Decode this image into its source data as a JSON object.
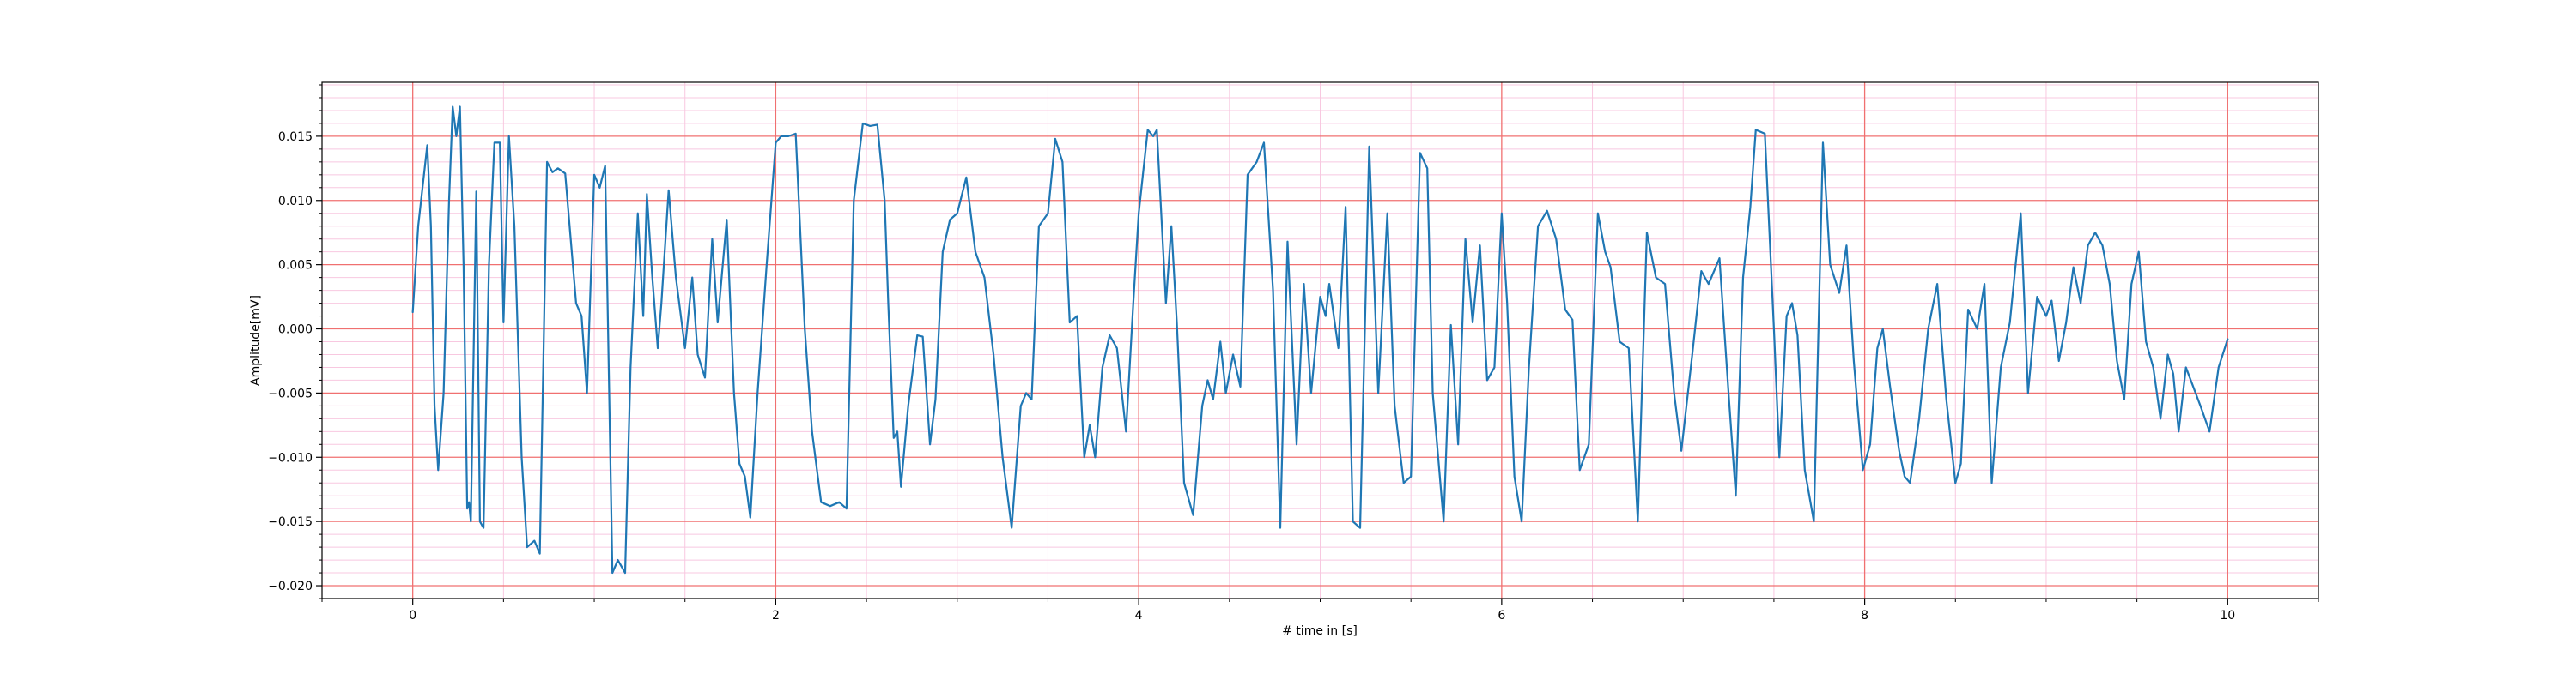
{
  "chart_data": {
    "type": "line",
    "xlabel": "# time in [s]",
    "ylabel": "Amplitude[mV]",
    "color": "#1f77b4",
    "xlim": [
      -0.5,
      10.5
    ],
    "xticks": [
      0,
      2,
      4,
      6,
      8,
      10
    ],
    "ylim": [
      -0.021,
      0.0192
    ],
    "yticks": [
      {
        "value": -0.02,
        "label": "−0.020"
      },
      {
        "value": -0.015,
        "label": "−0.015"
      },
      {
        "value": -0.01,
        "label": "−0.010"
      },
      {
        "value": -0.005,
        "label": "−0.005"
      },
      {
        "value": 0,
        "label": "0.000"
      },
      {
        "value": 0.005,
        "label": "0.005"
      },
      {
        "value": 0.01,
        "label": "0.010"
      },
      {
        "value": 0.015,
        "label": "0.015"
      }
    ],
    "xticks_minor": [
      -0.5,
      0.5,
      1,
      1.5,
      2.5,
      3,
      3.5,
      4.5,
      5,
      5.5,
      6.5,
      7,
      7.5,
      8.5,
      9,
      9.5,
      10.5
    ],
    "yticks_minor": [
      -0.021,
      -0.019,
      -0.018,
      -0.017,
      -0.016,
      -0.014,
      -0.013,
      -0.012,
      -0.011,
      -0.009,
      -0.008,
      -0.007,
      -0.006,
      -0.004,
      -0.003,
      -0.002,
      -0.001,
      0.001,
      0.002,
      0.003,
      0.004,
      0.006,
      0.007,
      0.008,
      0.009,
      0.011,
      0.012,
      0.013,
      0.014,
      0.016,
      0.017,
      0.018,
      0.019
    ],
    "grid": true,
    "major_grid_color": "#f07070",
    "minor_grid_color": "#f8c8e0",
    "x": [
      0,
      0.03,
      0.08,
      0.1,
      0.12,
      0.14,
      0.17,
      0.2,
      0.22,
      0.24,
      0.26,
      0.28,
      0.3,
      0.31,
      0.32,
      0.35,
      0.37,
      0.39,
      0.42,
      0.45,
      0.48,
      0.5,
      0.53,
      0.56,
      0.6,
      0.63,
      0.67,
      0.7,
      0.74,
      0.77,
      0.8,
      0.84,
      0.9,
      0.93,
      0.96,
      1.0,
      1.03,
      1.06,
      1.1,
      1.13,
      1.17,
      1.2,
      1.24,
      1.27,
      1.29,
      1.32,
      1.35,
      1.37,
      1.41,
      1.45,
      1.5,
      1.54,
      1.57,
      1.61,
      1.65,
      1.68,
      1.73,
      1.77,
      1.8,
      1.83,
      1.86,
      1.9,
      1.95,
      2.0,
      2.03,
      2.07,
      2.11,
      2.16,
      2.2,
      2.25,
      2.3,
      2.35,
      2.39,
      2.43,
      2.48,
      2.52,
      2.56,
      2.6,
      2.62,
      2.65,
      2.67,
      2.69,
      2.73,
      2.78,
      2.81,
      2.85,
      2.88,
      2.92,
      2.96,
      3.0,
      3.05,
      3.1,
      3.15,
      3.2,
      3.25,
      3.3,
      3.35,
      3.38,
      3.41,
      3.45,
      3.5,
      3.54,
      3.58,
      3.62,
      3.66,
      3.7,
      3.73,
      3.76,
      3.8,
      3.84,
      3.88,
      3.93,
      3.97,
      4.0,
      4.05,
      4.08,
      4.1,
      4.15,
      4.18,
      4.21,
      4.25,
      4.3,
      4.35,
      4.38,
      4.41,
      4.45,
      4.48,
      4.52,
      4.56,
      4.6,
      4.65,
      4.69,
      4.74,
      4.78,
      4.82,
      4.87,
      4.91,
      4.95,
      5.0,
      5.03,
      5.05,
      5.1,
      5.14,
      5.18,
      5.22,
      5.27,
      5.32,
      5.37,
      5.41,
      5.46,
      5.5,
      5.55,
      5.59,
      5.62,
      5.68,
      5.72,
      5.76,
      5.8,
      5.84,
      5.88,
      5.92,
      5.96,
      6.0,
      6.03,
      6.07,
      6.11,
      6.15,
      6.2,
      6.25,
      6.3,
      6.35,
      6.39,
      6.43,
      6.48,
      6.53,
      6.57,
      6.6,
      6.65,
      6.7,
      6.75,
      6.8,
      6.85,
      6.9,
      6.95,
      6.99,
      7.05,
      7.1,
      7.14,
      7.2,
      7.25,
      7.29,
      7.33,
      7.37,
      7.4,
      7.45,
      7.5,
      7.53,
      7.57,
      7.6,
      7.63,
      7.67,
      7.72,
      7.77,
      7.81,
      7.86,
      7.9,
      7.94,
      7.99,
      8.03,
      8.07,
      8.1,
      8.14,
      8.19,
      8.22,
      8.25,
      8.3,
      8.35,
      8.4,
      8.45,
      8.5,
      8.53,
      8.57,
      8.62,
      8.66,
      8.7,
      8.75,
      8.8,
      8.86,
      8.9,
      8.95,
      9.0,
      9.03,
      9.07,
      9.11,
      9.15,
      9.19,
      9.23,
      9.27,
      9.31,
      9.35,
      9.39,
      9.43,
      9.47,
      9.51,
      9.55,
      9.59,
      9.63,
      9.67,
      9.7,
      9.73,
      9.77,
      9.85,
      9.9,
      9.95,
      10.0
    ],
    "values": [
      0.0013,
      0.008,
      0.0143,
      0.008,
      -0.006,
      -0.011,
      -0.005,
      0.01,
      0.0173,
      0.015,
      0.0173,
      0.005,
      -0.014,
      -0.0135,
      -0.015,
      0.0107,
      -0.015,
      -0.0155,
      0.005,
      0.0145,
      0.0145,
      0.0005,
      0.015,
      0.008,
      -0.01,
      -0.017,
      -0.0165,
      -0.0175,
      0.013,
      0.0122,
      0.0125,
      0.0121,
      0.002,
      0.001,
      -0.005,
      0.012,
      0.011,
      0.0127,
      -0.019,
      -0.018,
      -0.019,
      -0.003,
      0.009,
      0.001,
      0.0105,
      0.004,
      -0.0015,
      0.002,
      0.0108,
      0.004,
      -0.0015,
      0.004,
      -0.002,
      -0.0038,
      0.007,
      0.0005,
      0.0085,
      -0.005,
      -0.0105,
      -0.0115,
      -0.0147,
      -0.005,
      0.005,
      0.0145,
      0.015,
      0.015,
      0.0152,
      0.0,
      -0.008,
      -0.0135,
      -0.0138,
      -0.0135,
      -0.014,
      0.01,
      0.016,
      0.0158,
      0.0159,
      0.01,
      0.002,
      -0.0085,
      -0.008,
      -0.0123,
      -0.006,
      -0.0005,
      -0.0006,
      -0.009,
      -0.0055,
      0.006,
      0.0085,
      0.009,
      0.0118,
      0.006,
      0.004,
      -0.002,
      -0.01,
      -0.0155,
      -0.006,
      -0.005,
      -0.0055,
      0.008,
      0.009,
      0.0148,
      0.013,
      0.0005,
      0.001,
      -0.01,
      -0.0075,
      -0.01,
      -0.003,
      -0.0005,
      -0.0015,
      -0.008,
      0.002,
      0.009,
      0.0155,
      0.015,
      0.0155,
      0.002,
      0.008,
      0.0005,
      -0.012,
      -0.0145,
      -0.006,
      -0.004,
      -0.0055,
      -0.001,
      -0.005,
      -0.002,
      -0.0045,
      0.012,
      0.013,
      0.0145,
      0.003,
      -0.0155,
      0.0068,
      -0.009,
      0.0035,
      -0.005,
      0.0025,
      0.001,
      0.0035,
      -0.0015,
      0.0095,
      -0.015,
      -0.0155,
      0.0142,
      -0.005,
      0.009,
      -0.006,
      -0.012,
      -0.0115,
      0.0137,
      0.0125,
      -0.005,
      -0.015,
      0.0003,
      -0.009,
      0.007,
      0.0005,
      0.0065,
      -0.004,
      -0.003,
      0.009,
      0.002,
      -0.0115,
      -0.015,
      -0.003,
      0.008,
      0.0092,
      0.007,
      0.0015,
      0.0007,
      -0.011,
      -0.009,
      0.009,
      0.006,
      0.0048,
      -0.001,
      -0.0015,
      -0.015,
      0.0075,
      0.004,
      0.0035,
      -0.005,
      -0.0095,
      -0.002,
      0.0045,
      0.0035,
      0.0055,
      -0.005,
      -0.013,
      0.004,
      0.0095,
      0.0155,
      0.0152,
      0.0,
      -0.01,
      0.001,
      0.002,
      -0.0005,
      -0.011,
      -0.015,
      0.0145,
      0.005,
      0.0028,
      0.0065,
      -0.0025,
      -0.011,
      -0.009,
      -0.0015,
      0.0,
      -0.0045,
      -0.0095,
      -0.0115,
      -0.012,
      -0.007,
      0.0,
      0.0035,
      -0.0055,
      -0.012,
      -0.0105,
      0.0015,
      0.0,
      0.0035,
      -0.012,
      -0.003,
      0.0005,
      0.009,
      -0.005,
      0.0025,
      0.001,
      0.0022,
      -0.0025,
      0.0005,
      0.0048,
      0.002,
      0.0065,
      0.0075,
      0.0065,
      0.0035,
      -0.0025,
      -0.0055,
      0.0035,
      0.006,
      -0.001,
      -0.003,
      -0.007,
      -0.002,
      -0.0035,
      -0.008,
      -0.003,
      -0.006,
      -0.008,
      -0.003,
      -0.0008
    ]
  }
}
